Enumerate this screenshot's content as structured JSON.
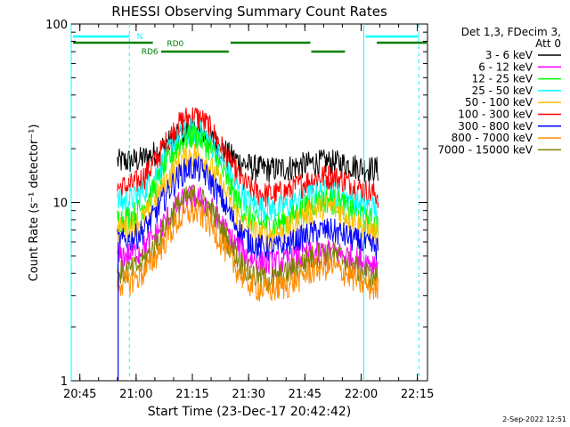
{
  "chart_data": {
    "type": "line",
    "title": "RHESSI Observing Summary Count Rates",
    "xlabel": "Start Time (23-Dec-17 20:42:42)",
    "ylabel": "Count Rate (s⁻¹ detector⁻¹)",
    "x_unit": "minutes since 20:42:42",
    "xlim": [
      0,
      95
    ],
    "ylim": [
      1,
      100
    ],
    "yscale": "log",
    "x_ticks": [
      {
        "label": "20:45",
        "value": 2.3
      },
      {
        "label": "21:00",
        "value": 17.3
      },
      {
        "label": "21:15",
        "value": 32.3
      },
      {
        "label": "21:30",
        "value": 47.3
      },
      {
        "label": "21:45",
        "value": 62.3
      },
      {
        "label": "22:00",
        "value": 77.3
      },
      {
        "label": "22:15",
        "value": 92.3
      }
    ],
    "y_ticks": [
      {
        "label": "1",
        "value": 1
      },
      {
        "label": "10",
        "value": 10
      },
      {
        "label": "100",
        "value": 100
      }
    ],
    "legend_header": [
      "Det 1,3, FDecim 3,",
      "Att 0"
    ],
    "series": [
      {
        "name": "3 - 6 keV",
        "color": "#000000",
        "base": 17,
        "peak": 26,
        "tail": 19
      },
      {
        "name": "6 - 12 keV",
        "color": "#ff00ff",
        "base": 5,
        "peak": 11,
        "tail": 6
      },
      {
        "name": "12 - 25 keV",
        "color": "#00ff00",
        "base": 8,
        "peak": 24,
        "tail": 12
      },
      {
        "name": "25 - 50 keV",
        "color": "#00ffff",
        "base": 10,
        "peak": 26,
        "tail": 13
      },
      {
        "name": "50 - 100 keV",
        "color": "#ffbf00",
        "base": 7,
        "peak": 19,
        "tail": 11
      },
      {
        "name": "100 - 300 keV",
        "color": "#ff0000",
        "base": 12,
        "peak": 31,
        "tail": 16
      },
      {
        "name": "300 - 800 keV",
        "color": "#0000ff",
        "base": 6,
        "peak": 16,
        "tail": 8
      },
      {
        "name": "800 - 7000 keV",
        "color": "#ff8c00",
        "base": 3.5,
        "peak": 9,
        "tail": 5
      },
      {
        "name": "7000 - 15000 keV",
        "color": "#808000",
        "base": 4,
        "peak": 11,
        "tail": 6
      }
    ],
    "data_window": [
      12.3,
      82.0
    ],
    "flare_peak": 32.5,
    "secondary_peak": 68,
    "markers": {
      "night_lines": [
        0,
        78
      ],
      "saa_lines": [
        15.5,
        92.7
      ],
      "N_label": "N",
      "RD0_label": "RD0",
      "RD6_label": "RD6"
    },
    "colors": {
      "saa": "#00ffff",
      "decim": "#008000"
    }
  },
  "footer": {
    "timestamp": "2-Sep-2022 12:51"
  }
}
